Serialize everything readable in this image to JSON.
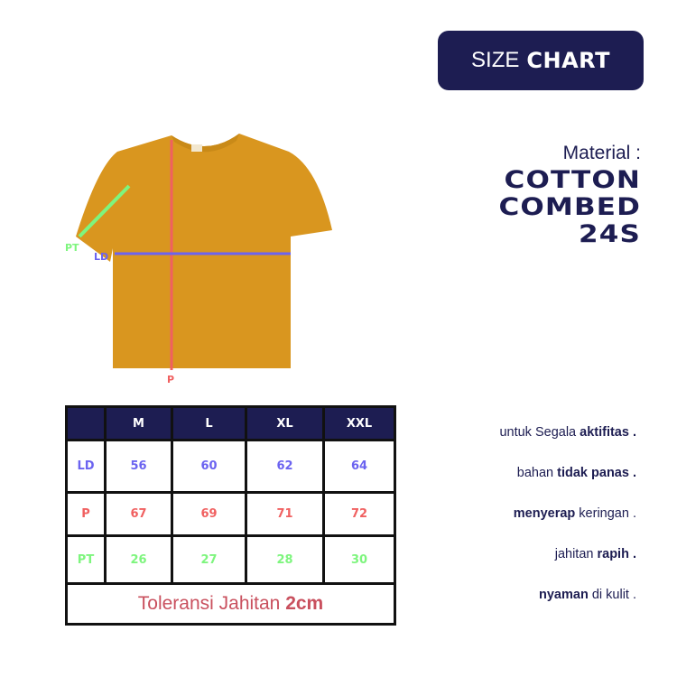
{
  "badge": {
    "light": "SIZE",
    "bold": "CHART"
  },
  "material": {
    "label": "Material :",
    "lines": [
      "COTTON",
      "COMBED",
      "24S"
    ]
  },
  "measure_labels": {
    "pt": "PT",
    "ld": "LD",
    "p": "P"
  },
  "colors": {
    "navy": "#1d1d52",
    "ld": "#6b63f0",
    "p": "#f06060",
    "pt": "#7ef57e",
    "shirt": "#d9961f",
    "tolerance": "#c9505e"
  },
  "table": {
    "headers": [
      "",
      "M",
      "L",
      "XL",
      "XXL"
    ],
    "rows": [
      {
        "label": "LD",
        "values": [
          "56",
          "60",
          "62",
          "64"
        ]
      },
      {
        "label": "P",
        "values": [
          "67",
          "69",
          "71",
          "72"
        ]
      },
      {
        "label": "PT",
        "values": [
          "26",
          "27",
          "28",
          "30"
        ]
      }
    ],
    "tolerance": {
      "text": "Toleransi Jahitan ",
      "bold": "2cm"
    }
  },
  "features": [
    {
      "pre": "untuk Segala ",
      "bold": "aktifitas .",
      "post": ""
    },
    {
      "pre": "bahan ",
      "bold": "tidak panas .",
      "post": ""
    },
    {
      "pre": "",
      "bold": "menyerap",
      "post": " keringan ."
    },
    {
      "pre": "jahitan ",
      "bold": "rapih .",
      "post": ""
    },
    {
      "pre": "",
      "bold": "nyaman",
      "post": " di kulit ."
    }
  ]
}
